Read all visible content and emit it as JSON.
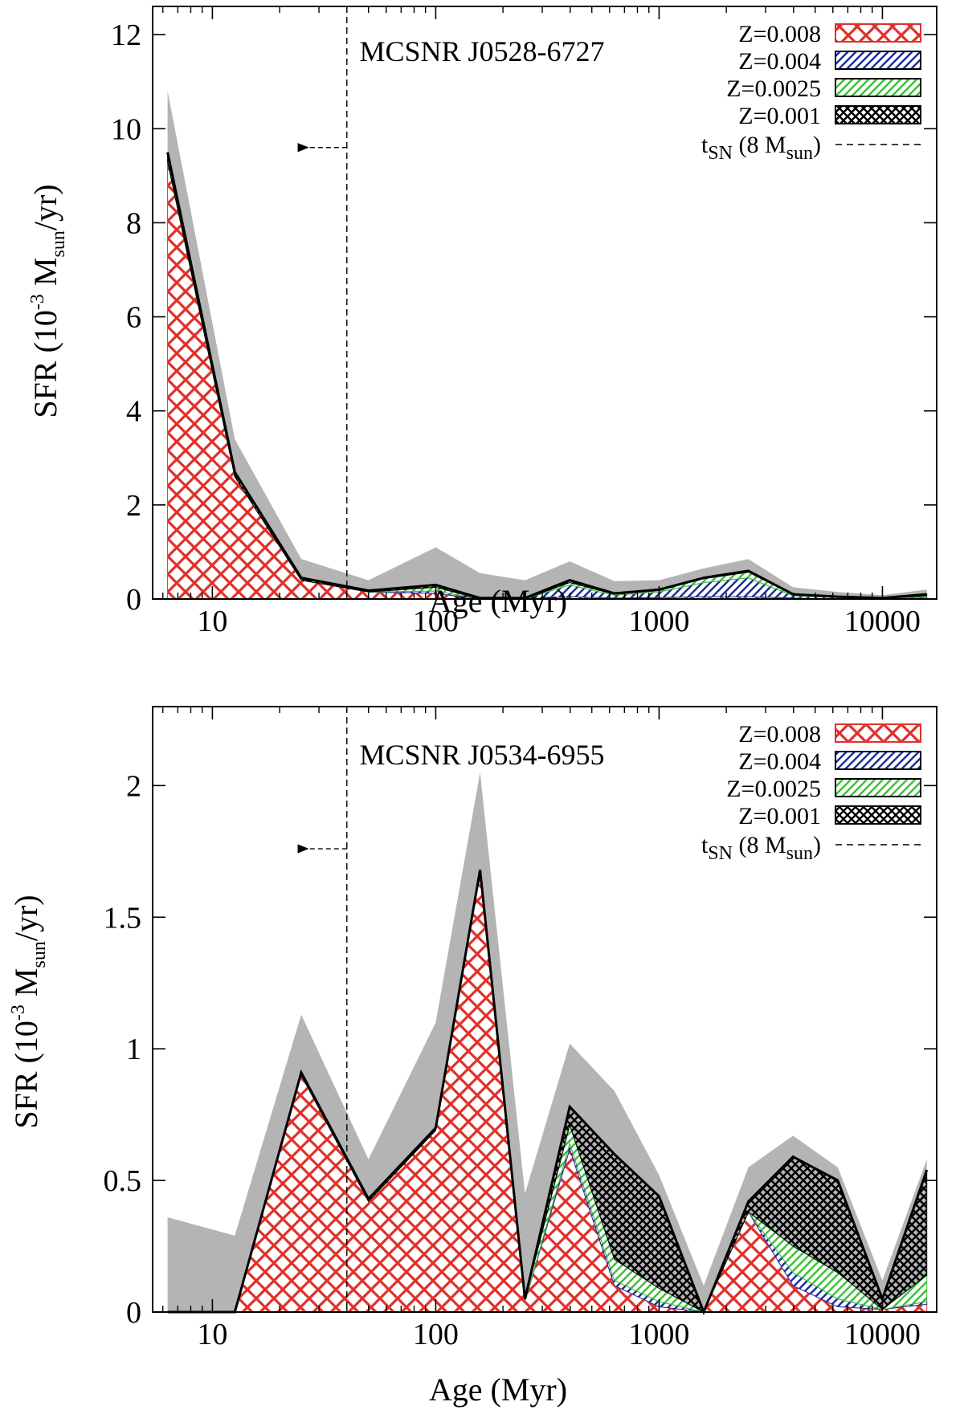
{
  "figure": {
    "description_visible": false
  },
  "colors": {
    "envelope": "#b4b4b4",
    "z0008": "#e0302a",
    "z0004": "#1e2f9e",
    "z00025": "#3fbf3a",
    "z0001": "#000000",
    "frame": "#000000"
  },
  "chart_data": [
    {
      "type": "area",
      "title": "MCSNR J0528-6727",
      "xlabel": "Age (Myr)",
      "ylabel_main": "SFR (10",
      "ylabel_exp": "-3",
      "ylabel_mid": " M",
      "ylabel_sub": "sun",
      "ylabel_end": "/yr)",
      "xscale": "log",
      "xlim": [
        5.4,
        17500
      ],
      "ylim": [
        0,
        12.6
      ],
      "xticks": [
        10,
        100,
        1000,
        10000
      ],
      "xtick_labels": [
        "10",
        "100",
        "1000",
        "10000"
      ],
      "yticks": [
        0,
        2,
        4,
        6,
        8,
        10,
        12
      ],
      "ytick_labels": [
        "0",
        "2",
        "4",
        "6",
        "8",
        "10",
        "12"
      ],
      "ages": [
        6.3,
        12.6,
        25,
        50,
        100,
        158,
        251,
        398,
        631,
        1000,
        1585,
        2512,
        3981,
        6310,
        10000,
        15800
      ],
      "sfr_best": [
        9.5,
        2.7,
        0.45,
        0.18,
        0.3,
        0.02,
        0.02,
        0.4,
        0.12,
        0.2,
        0.45,
        0.6,
        0.1,
        0.05,
        0.02,
        0.1
      ],
      "sfr_upper": [
        10.8,
        3.4,
        0.85,
        0.4,
        1.1,
        0.55,
        0.4,
        0.8,
        0.38,
        0.4,
        0.65,
        0.85,
        0.25,
        0.15,
        0.08,
        0.2
      ],
      "series": [
        {
          "name": "Z=0.008",
          "values": [
            9.3,
            2.6,
            0.4,
            0.15,
            0.12,
            0.0,
            0.0,
            0.05,
            0.02,
            0.03,
            0.05,
            0.05,
            0.02,
            0.0,
            0.0,
            0.02
          ]
        },
        {
          "name": "Z=0.004",
          "values": [
            0.0,
            0.0,
            0.0,
            0.0,
            0.05,
            0.0,
            0.0,
            0.25,
            0.06,
            0.12,
            0.3,
            0.4,
            0.05,
            0.03,
            0.01,
            0.03
          ]
        },
        {
          "name": "Z=0.0025",
          "values": [
            0.0,
            0.0,
            0.0,
            0.0,
            0.08,
            0.0,
            0.0,
            0.05,
            0.02,
            0.03,
            0.08,
            0.12,
            0.02,
            0.01,
            0.0,
            0.02
          ]
        },
        {
          "name": "Z=0.001",
          "values": [
            0.2,
            0.1,
            0.05,
            0.03,
            0.05,
            0.02,
            0.02,
            0.05,
            0.02,
            0.02,
            0.02,
            0.03,
            0.01,
            0.01,
            0.01,
            0.03
          ]
        }
      ],
      "tsn_age": 40,
      "tsn_arrow_y": 9.6,
      "legend": {
        "position": "top-right",
        "entries": [
          "Z=0.008",
          "Z=0.004",
          "Z=0.0025",
          "Z=0.001"
        ],
        "tsn_main": "t",
        "tsn_sub": "SN",
        "tsn_mid": " (8 M",
        "tsn_sub2": "sun",
        "tsn_end": ")"
      }
    },
    {
      "type": "area",
      "title": "MCSNR J0534-6955",
      "xlabel": "Age (Myr)",
      "ylabel_main": "SFR (10",
      "ylabel_exp": "-3",
      "ylabel_mid": " M",
      "ylabel_sub": "sun",
      "ylabel_end": "/yr)",
      "xscale": "log",
      "xlim": [
        5.4,
        17500
      ],
      "ylim": [
        0,
        2.3
      ],
      "xticks": [
        10,
        100,
        1000,
        10000
      ],
      "xtick_labels": [
        "10",
        "100",
        "1000",
        "10000"
      ],
      "yticks": [
        0,
        0.5,
        1,
        1.5,
        2
      ],
      "ytick_labels": [
        "0",
        "0.5",
        "1",
        "1.5",
        "2"
      ],
      "ages": [
        6.3,
        12.6,
        25,
        50,
        100,
        158,
        251,
        398,
        631,
        1000,
        1585,
        2512,
        3981,
        6310,
        10000,
        15800
      ],
      "sfr_best": [
        0.0,
        0.0,
        0.91,
        0.43,
        0.7,
        1.68,
        0.05,
        0.78,
        0.6,
        0.44,
        0.0,
        0.42,
        0.59,
        0.5,
        0.05,
        0.54
      ],
      "sfr_upper": [
        0.36,
        0.29,
        1.13,
        0.58,
        1.1,
        2.05,
        0.45,
        1.02,
        0.84,
        0.52,
        0.1,
        0.55,
        0.67,
        0.55,
        0.12,
        0.58
      ],
      "series": [
        {
          "name": "Z=0.008",
          "values": [
            0.0,
            0.0,
            0.9,
            0.42,
            0.69,
            1.67,
            0.04,
            0.62,
            0.1,
            0.02,
            0.0,
            0.38,
            0.1,
            0.02,
            0.01,
            0.03
          ]
        },
        {
          "name": "Z=0.004",
          "values": [
            0.0,
            0.0,
            0.0,
            0.0,
            0.0,
            0.0,
            0.0,
            0.02,
            0.02,
            0.02,
            0.0,
            0.0,
            0.05,
            0.03,
            0.0,
            0.01
          ]
        },
        {
          "name": "Z=0.0025",
          "values": [
            0.0,
            0.0,
            0.0,
            0.0,
            0.0,
            0.0,
            0.01,
            0.07,
            0.08,
            0.05,
            0.0,
            0.0,
            0.1,
            0.1,
            0.0,
            0.1
          ]
        },
        {
          "name": "Z=0.001",
          "values": [
            0.0,
            0.0,
            0.01,
            0.01,
            0.01,
            0.01,
            0.0,
            0.07,
            0.4,
            0.35,
            0.0,
            0.04,
            0.34,
            0.35,
            0.04,
            0.4
          ]
        }
      ],
      "tsn_age": 40,
      "tsn_arrow_y": 1.76,
      "legend": {
        "position": "top-right",
        "entries": [
          "Z=0.008",
          "Z=0.004",
          "Z=0.0025",
          "Z=0.001"
        ],
        "tsn_main": "t",
        "tsn_sub": "SN",
        "tsn_mid": " (8 M",
        "tsn_sub2": "sun",
        "tsn_end": ")"
      }
    }
  ]
}
